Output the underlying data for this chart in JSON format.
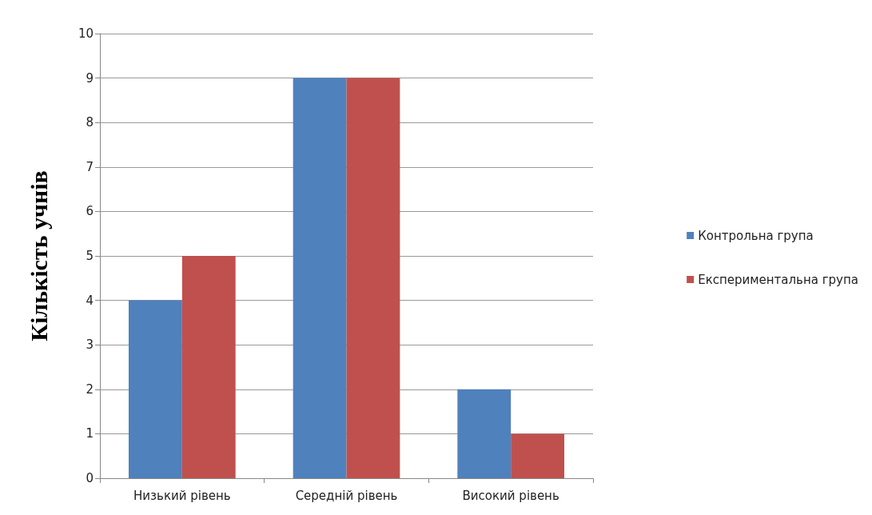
{
  "chart_data": {
    "type": "bar",
    "ylabel": "Кількість учнів",
    "categories": [
      "Низький рівень",
      "Середній рівень",
      "Високий рівень"
    ],
    "series": [
      {
        "name": "Контрольна група",
        "color": "#4f81bd",
        "values": [
          4,
          9,
          2
        ]
      },
      {
        "name": "Експериментальна група",
        "color": "#c0504d",
        "values": [
          5,
          9,
          1
        ]
      }
    ],
    "ylim": [
      0,
      10
    ],
    "yticks": [
      0,
      1,
      2,
      3,
      4,
      5,
      6,
      7,
      8,
      9,
      10
    ],
    "grid": "y",
    "legend": "right"
  }
}
